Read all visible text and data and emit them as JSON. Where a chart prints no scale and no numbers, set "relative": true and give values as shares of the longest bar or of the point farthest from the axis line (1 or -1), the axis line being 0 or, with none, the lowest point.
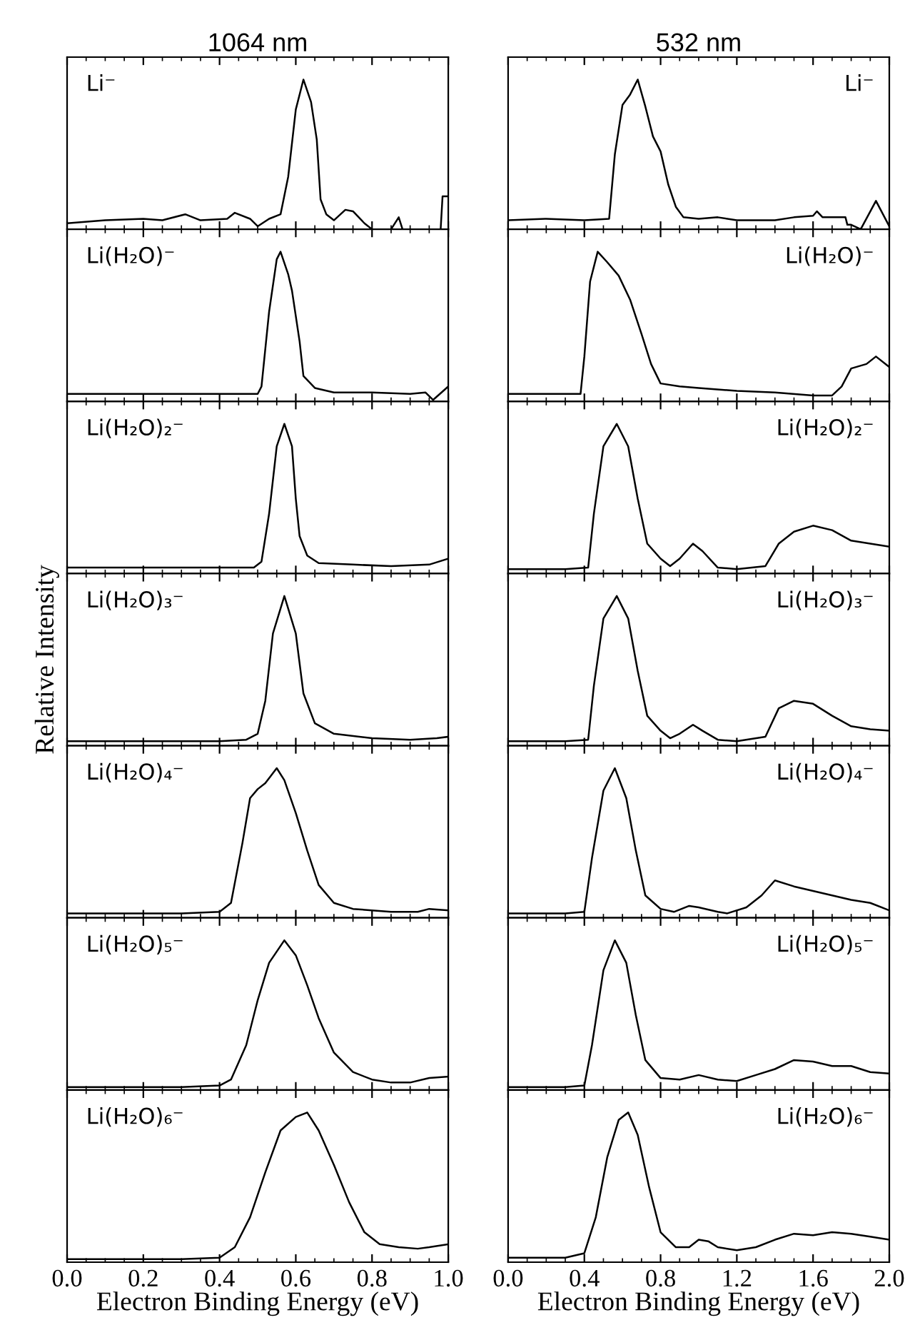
{
  "chart_data": [
    {
      "type": "line",
      "title": "1064 nm",
      "relative": true,
      "xlim": [
        0,
        1
      ],
      "xticks": [
        {
          "value": 0,
          "label": null
        },
        {
          "value": 0.2,
          "label": null
        },
        {
          "value": 0.4,
          "label": null
        },
        {
          "value": 0.6,
          "label": null
        },
        {
          "value": 0.8,
          "label": null
        },
        {
          "value": 1,
          "label": null
        }
      ],
      "tick_labels": false,
      "annotations": [
        "Li⁻"
      ],
      "series": [
        {
          "color": "#000000",
          "x": [
            0,
            0.1,
            0.2,
            0.25,
            0.31,
            0.35,
            0.42,
            0.44,
            0.48,
            0.5,
            0.53,
            0.56,
            0.58,
            0.6,
            0.62,
            0.64,
            0.655,
            0.665,
            0.68,
            0.7,
            0.73,
            0.75,
            0.78,
            0.8,
            0.85,
            0.87,
            0.88,
            0.98,
            0.985,
            1.0
          ],
          "values": [
            0.04,
            0.06,
            0.07,
            0.06,
            0.1,
            0.06,
            0.07,
            0.11,
            0.07,
            0.02,
            0.07,
            0.1,
            0.35,
            0.8,
            1.0,
            0.85,
            0.6,
            0.2,
            0.1,
            0.06,
            0.13,
            0.12,
            0.04,
            0.0,
            0.0,
            0.08,
            0.0,
            0.0,
            0.22,
            0.22
          ]
        }
      ]
    },
    {
      "type": "line",
      "title": "532 nm",
      "relative": true,
      "xlim": [
        0,
        2
      ],
      "xticks": [
        {
          "value": 0,
          "label": null
        },
        {
          "value": 0.4,
          "label": null
        },
        {
          "value": 0.8,
          "label": null
        },
        {
          "value": 1.2,
          "label": null
        },
        {
          "value": 1.6,
          "label": null
        },
        {
          "value": 2,
          "label": null
        }
      ],
      "tick_labels": false,
      "annotations": [
        "Li⁻"
      ],
      "series": [
        {
          "color": "#000000",
          "x": [
            0,
            0.2,
            0.4,
            0.53,
            0.56,
            0.6,
            0.64,
            0.68,
            0.72,
            0.76,
            0.8,
            0.84,
            0.88,
            0.92,
            1.0,
            1.1,
            1.2,
            1.4,
            1.5,
            1.6,
            1.62,
            1.65,
            1.77,
            1.78,
            1.8,
            1.85,
            1.93,
            2.0
          ],
          "values": [
            0.06,
            0.07,
            0.06,
            0.07,
            0.5,
            0.83,
            0.9,
            1.0,
            0.82,
            0.62,
            0.52,
            0.3,
            0.15,
            0.08,
            0.07,
            0.08,
            0.06,
            0.06,
            0.08,
            0.09,
            0.12,
            0.08,
            0.08,
            0.03,
            0.03,
            0.0,
            0.19,
            0.02
          ]
        }
      ]
    },
    {
      "type": "line",
      "relative": true,
      "xlim": [
        0,
        1
      ],
      "xticks": [
        {
          "value": 0,
          "label": null
        },
        {
          "value": 0.2,
          "label": null
        },
        {
          "value": 0.4,
          "label": null
        },
        {
          "value": 0.6,
          "label": null
        },
        {
          "value": 0.8,
          "label": null
        },
        {
          "value": 1,
          "label": null
        }
      ],
      "tick_labels": false,
      "annotations": [
        "Li(H₂O)⁻"
      ],
      "series": [
        {
          "color": "#000000",
          "x": [
            0,
            0.3,
            0.5,
            0.51,
            0.53,
            0.55,
            0.56,
            0.58,
            0.59,
            0.61,
            0.62,
            0.65,
            0.7,
            0.8,
            0.9,
            0.94,
            0.96,
            1.0
          ],
          "values": [
            0.05,
            0.05,
            0.05,
            0.1,
            0.6,
            0.95,
            1.0,
            0.85,
            0.74,
            0.4,
            0.17,
            0.09,
            0.06,
            0.06,
            0.05,
            0.06,
            0.01,
            0.1
          ]
        }
      ]
    },
    {
      "type": "line",
      "relative": true,
      "xlim": [
        0,
        2
      ],
      "xticks": [
        {
          "value": 0,
          "label": null
        },
        {
          "value": 0.4,
          "label": null
        },
        {
          "value": 0.8,
          "label": null
        },
        {
          "value": 1.2,
          "label": null
        },
        {
          "value": 1.6,
          "label": null
        },
        {
          "value": 2,
          "label": null
        }
      ],
      "tick_labels": false,
      "annotations": [
        "Li(H₂O)⁻"
      ],
      "series": [
        {
          "color": "#000000",
          "x": [
            0,
            0.2,
            0.38,
            0.4,
            0.43,
            0.47,
            0.52,
            0.58,
            0.64,
            0.7,
            0.75,
            0.8,
            0.9,
            1.0,
            1.2,
            1.4,
            1.6,
            1.7,
            1.75,
            1.8,
            1.88,
            1.93,
            2.0
          ],
          "values": [
            0.05,
            0.05,
            0.05,
            0.3,
            0.8,
            1.0,
            0.93,
            0.84,
            0.68,
            0.45,
            0.25,
            0.12,
            0.1,
            0.09,
            0.07,
            0.06,
            0.04,
            0.04,
            0.1,
            0.22,
            0.25,
            0.3,
            0.23
          ]
        }
      ]
    },
    {
      "type": "line",
      "relative": true,
      "xlim": [
        0,
        1
      ],
      "xticks": [
        {
          "value": 0,
          "label": null
        },
        {
          "value": 0.2,
          "label": null
        },
        {
          "value": 0.4,
          "label": null
        },
        {
          "value": 0.6,
          "label": null
        },
        {
          "value": 0.8,
          "label": null
        },
        {
          "value": 1,
          "label": null
        }
      ],
      "tick_labels": false,
      "annotations": [
        "Li(H₂O)₂⁻"
      ],
      "series": [
        {
          "color": "#000000",
          "x": [
            0,
            0.3,
            0.49,
            0.51,
            0.53,
            0.55,
            0.57,
            0.59,
            0.6,
            0.61,
            0.63,
            0.66,
            0.75,
            0.85,
            0.95,
            1.0
          ],
          "values": [
            0.04,
            0.04,
            0.04,
            0.08,
            0.4,
            0.85,
            1.0,
            0.85,
            0.5,
            0.25,
            0.12,
            0.07,
            0.06,
            0.05,
            0.06,
            0.1
          ]
        }
      ]
    },
    {
      "type": "line",
      "relative": true,
      "xlim": [
        0,
        2
      ],
      "xticks": [
        {
          "value": 0,
          "label": null
        },
        {
          "value": 0.4,
          "label": null
        },
        {
          "value": 0.8,
          "label": null
        },
        {
          "value": 1.2,
          "label": null
        },
        {
          "value": 1.6,
          "label": null
        },
        {
          "value": 2,
          "label": null
        }
      ],
      "tick_labels": false,
      "annotations": [
        "Li(H₂O)₂⁻"
      ],
      "series": [
        {
          "color": "#000000",
          "x": [
            0,
            0.3,
            0.42,
            0.45,
            0.5,
            0.57,
            0.63,
            0.68,
            0.73,
            0.8,
            0.85,
            0.9,
            0.97,
            1.02,
            1.1,
            1.2,
            1.35,
            1.42,
            1.5,
            1.6,
            1.7,
            1.8,
            1.9,
            2.0
          ],
          "values": [
            0.03,
            0.03,
            0.04,
            0.4,
            0.85,
            1.0,
            0.85,
            0.5,
            0.2,
            0.1,
            0.05,
            0.1,
            0.2,
            0.15,
            0.04,
            0.03,
            0.05,
            0.2,
            0.28,
            0.32,
            0.29,
            0.22,
            0.2,
            0.18
          ]
        }
      ]
    },
    {
      "type": "line",
      "relative": true,
      "ylabel": "Relative Intensity",
      "xlim": [
        0,
        1
      ],
      "xticks": [
        {
          "value": 0,
          "label": null
        },
        {
          "value": 0.2,
          "label": null
        },
        {
          "value": 0.4,
          "label": null
        },
        {
          "value": 0.6,
          "label": null
        },
        {
          "value": 0.8,
          "label": null
        },
        {
          "value": 1,
          "label": null
        }
      ],
      "tick_labels": false,
      "annotations": [
        "Li(H₂O)₃⁻"
      ],
      "series": [
        {
          "color": "#000000",
          "x": [
            0,
            0.4,
            0.47,
            0.5,
            0.52,
            0.54,
            0.57,
            0.6,
            0.62,
            0.65,
            0.7,
            0.8,
            0.9,
            0.97,
            1.0
          ],
          "values": [
            0.03,
            0.03,
            0.04,
            0.08,
            0.3,
            0.75,
            1.0,
            0.75,
            0.35,
            0.15,
            0.08,
            0.05,
            0.04,
            0.05,
            0.06
          ]
        }
      ]
    },
    {
      "type": "line",
      "relative": true,
      "xlim": [
        0,
        2
      ],
      "xticks": [
        {
          "value": 0,
          "label": null
        },
        {
          "value": 0.4,
          "label": null
        },
        {
          "value": 0.8,
          "label": null
        },
        {
          "value": 1.2,
          "label": null
        },
        {
          "value": 1.6,
          "label": null
        },
        {
          "value": 2,
          "label": null
        }
      ],
      "tick_labels": false,
      "annotations": [
        "Li(H₂O)₃⁻"
      ],
      "series": [
        {
          "color": "#000000",
          "x": [
            0,
            0.3,
            0.42,
            0.45,
            0.5,
            0.57,
            0.63,
            0.68,
            0.73,
            0.8,
            0.85,
            0.9,
            0.97,
            1.02,
            1.1,
            1.2,
            1.35,
            1.42,
            1.5,
            1.6,
            1.7,
            1.8,
            1.9,
            2.0
          ],
          "values": [
            0.03,
            0.03,
            0.04,
            0.4,
            0.85,
            1.0,
            0.85,
            0.5,
            0.2,
            0.1,
            0.05,
            0.08,
            0.14,
            0.1,
            0.04,
            0.03,
            0.06,
            0.25,
            0.3,
            0.28,
            0.2,
            0.13,
            0.11,
            0.1
          ]
        }
      ]
    },
    {
      "type": "line",
      "relative": true,
      "xlim": [
        0,
        1
      ],
      "xticks": [
        {
          "value": 0,
          "label": null
        },
        {
          "value": 0.2,
          "label": null
        },
        {
          "value": 0.4,
          "label": null
        },
        {
          "value": 0.6,
          "label": null
        },
        {
          "value": 0.8,
          "label": null
        },
        {
          "value": 1,
          "label": null
        }
      ],
      "tick_labels": false,
      "annotations": [
        "Li(H₂O)₄⁻"
      ],
      "series": [
        {
          "color": "#000000",
          "x": [
            0,
            0.3,
            0.4,
            0.43,
            0.46,
            0.48,
            0.5,
            0.52,
            0.55,
            0.57,
            0.6,
            0.63,
            0.66,
            0.7,
            0.75,
            0.85,
            0.92,
            0.95,
            1.0
          ],
          "values": [
            0.03,
            0.03,
            0.04,
            0.1,
            0.5,
            0.8,
            0.86,
            0.9,
            1.0,
            0.92,
            0.7,
            0.45,
            0.22,
            0.1,
            0.06,
            0.04,
            0.04,
            0.06,
            0.05
          ]
        }
      ]
    },
    {
      "type": "line",
      "relative": true,
      "xlim": [
        0,
        2
      ],
      "xticks": [
        {
          "value": 0,
          "label": null
        },
        {
          "value": 0.4,
          "label": null
        },
        {
          "value": 0.8,
          "label": null
        },
        {
          "value": 1.2,
          "label": null
        },
        {
          "value": 1.6,
          "label": null
        },
        {
          "value": 2,
          "label": null
        }
      ],
      "tick_labels": false,
      "annotations": [
        "Li(H₂O)₄⁻"
      ],
      "series": [
        {
          "color": "#000000",
          "x": [
            0,
            0.3,
            0.4,
            0.44,
            0.5,
            0.56,
            0.62,
            0.67,
            0.72,
            0.8,
            0.87,
            0.95,
            1.0,
            1.1,
            1.15,
            1.25,
            1.33,
            1.4,
            1.5,
            1.6,
            1.7,
            1.8,
            1.9,
            2.0
          ],
          "values": [
            0.03,
            0.03,
            0.04,
            0.4,
            0.85,
            1.0,
            0.8,
            0.45,
            0.15,
            0.06,
            0.04,
            0.08,
            0.07,
            0.04,
            0.03,
            0.07,
            0.15,
            0.25,
            0.21,
            0.18,
            0.15,
            0.12,
            0.1,
            0.05
          ]
        }
      ]
    },
    {
      "type": "line",
      "relative": true,
      "xlim": [
        0,
        1
      ],
      "xticks": [
        {
          "value": 0,
          "label": null
        },
        {
          "value": 0.2,
          "label": null
        },
        {
          "value": 0.4,
          "label": null
        },
        {
          "value": 0.6,
          "label": null
        },
        {
          "value": 0.8,
          "label": null
        },
        {
          "value": 1,
          "label": null
        }
      ],
      "tick_labels": false,
      "annotations": [
        "Li(H₂O)₅⁻"
      ],
      "series": [
        {
          "color": "#000000",
          "x": [
            0,
            0.3,
            0.4,
            0.43,
            0.47,
            0.5,
            0.53,
            0.57,
            0.6,
            0.63,
            0.66,
            0.7,
            0.75,
            0.8,
            0.85,
            0.9,
            0.95,
            1.0
          ],
          "values": [
            0.02,
            0.02,
            0.03,
            0.07,
            0.3,
            0.6,
            0.85,
            1.0,
            0.9,
            0.7,
            0.48,
            0.25,
            0.12,
            0.07,
            0.05,
            0.05,
            0.08,
            0.09
          ]
        }
      ]
    },
    {
      "type": "line",
      "relative": true,
      "xlim": [
        0,
        2
      ],
      "xticks": [
        {
          "value": 0,
          "label": null
        },
        {
          "value": 0.4,
          "label": null
        },
        {
          "value": 0.8,
          "label": null
        },
        {
          "value": 1.2,
          "label": null
        },
        {
          "value": 1.6,
          "label": null
        },
        {
          "value": 2,
          "label": null
        }
      ],
      "tick_labels": false,
      "annotations": [
        "Li(H₂O)₅⁻"
      ],
      "series": [
        {
          "color": "#000000",
          "x": [
            0,
            0.3,
            0.4,
            0.44,
            0.5,
            0.56,
            0.62,
            0.67,
            0.72,
            0.8,
            0.9,
            1.0,
            1.1,
            1.2,
            1.3,
            1.4,
            1.5,
            1.6,
            1.7,
            1.8,
            1.9,
            2.0
          ],
          "values": [
            0.02,
            0.02,
            0.03,
            0.3,
            0.8,
            1.0,
            0.85,
            0.5,
            0.2,
            0.08,
            0.07,
            0.1,
            0.07,
            0.06,
            0.1,
            0.14,
            0.2,
            0.19,
            0.16,
            0.16,
            0.12,
            0.11
          ]
        }
      ]
    },
    {
      "type": "line",
      "relative": true,
      "xlabel": "Electron Binding Energy (eV)",
      "xlim": [
        0,
        1
      ],
      "xticks": [
        {
          "value": 0,
          "label": "0.0"
        },
        {
          "value": 0.2,
          "label": "0.2"
        },
        {
          "value": 0.4,
          "label": "0.4"
        },
        {
          "value": 0.6,
          "label": "0.6"
        },
        {
          "value": 0.8,
          "label": "0.8"
        },
        {
          "value": 1,
          "label": "1.0"
        }
      ],
      "tick_labels": "x",
      "annotations": [
        "Li(H₂O)₆⁻"
      ],
      "series": [
        {
          "color": "#000000",
          "x": [
            0,
            0.3,
            0.4,
            0.44,
            0.48,
            0.52,
            0.56,
            0.6,
            0.63,
            0.66,
            0.7,
            0.74,
            0.78,
            0.82,
            0.87,
            0.92,
            0.95,
            1.0
          ],
          "values": [
            0.02,
            0.02,
            0.03,
            0.1,
            0.3,
            0.6,
            0.88,
            0.97,
            1.0,
            0.88,
            0.65,
            0.4,
            0.2,
            0.12,
            0.1,
            0.09,
            0.1,
            0.12
          ]
        }
      ]
    },
    {
      "type": "line",
      "relative": true,
      "xlabel": "Electron Binding Energy (eV)",
      "xlim": [
        0,
        2
      ],
      "xticks": [
        {
          "value": 0,
          "label": "0.0"
        },
        {
          "value": 0.4,
          "label": "0.4"
        },
        {
          "value": 0.8,
          "label": "0.8"
        },
        {
          "value": 1.2,
          "label": "1.2"
        },
        {
          "value": 1.6,
          "label": "1.6"
        },
        {
          "value": 2,
          "label": "2.0"
        }
      ],
      "tick_labels": "x",
      "annotations": [
        "Li(H₂O)₆⁻"
      ],
      "series": [
        {
          "color": "#000000",
          "x": [
            0,
            0.3,
            0.4,
            0.46,
            0.52,
            0.58,
            0.63,
            0.68,
            0.74,
            0.8,
            0.88,
            0.95,
            1.0,
            1.05,
            1.1,
            1.2,
            1.3,
            1.4,
            1.5,
            1.6,
            1.7,
            1.8,
            1.9,
            2.0
          ],
          "values": [
            0.03,
            0.03,
            0.06,
            0.3,
            0.7,
            0.95,
            1.0,
            0.85,
            0.5,
            0.2,
            0.1,
            0.1,
            0.15,
            0.14,
            0.1,
            0.08,
            0.1,
            0.15,
            0.19,
            0.18,
            0.2,
            0.19,
            0.17,
            0.15
          ]
        }
      ]
    }
  ]
}
